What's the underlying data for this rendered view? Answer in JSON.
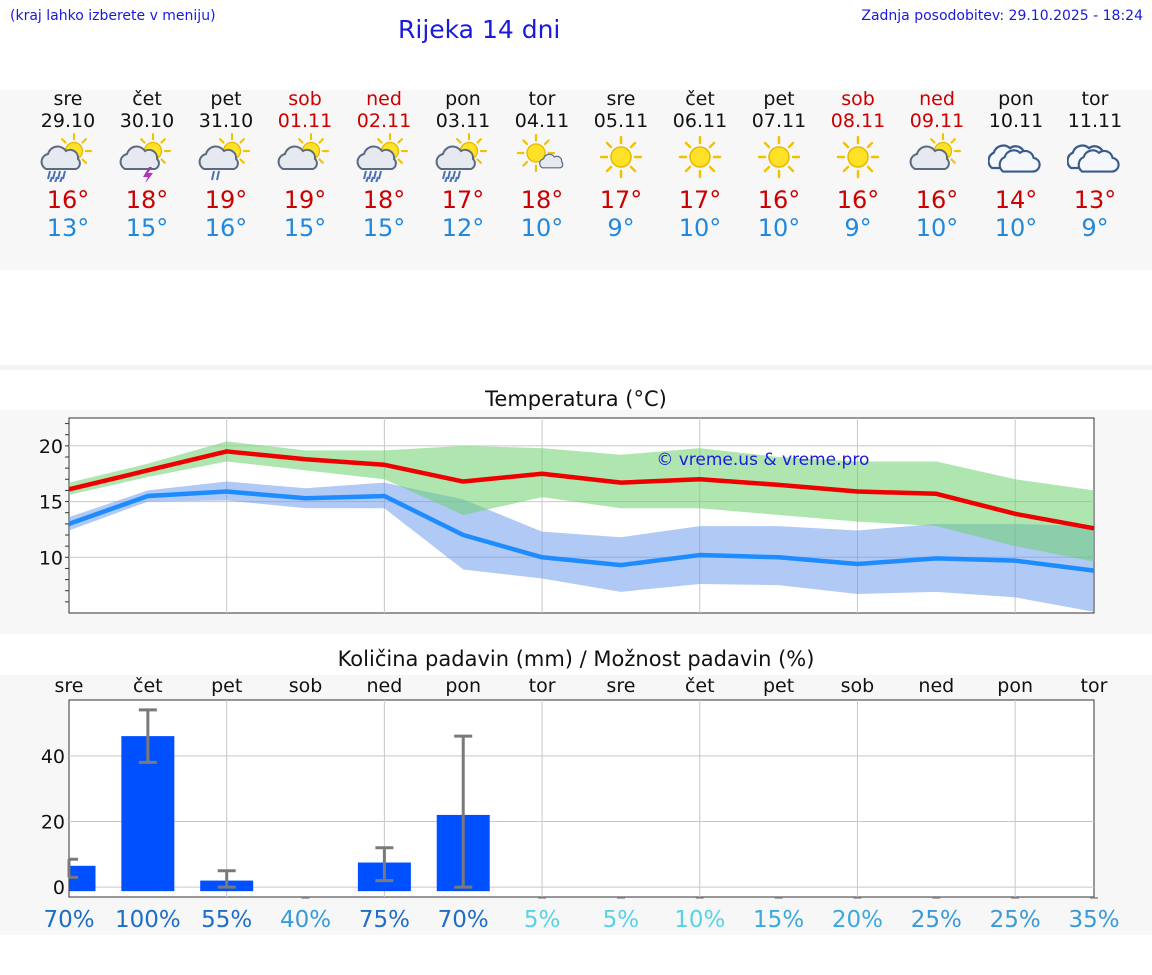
{
  "header": {
    "hint": "(kraj lahko izberete v meniju)",
    "title": "Rijeka 14 dni",
    "updated": "Zadnja posodobitev: 29.10.2025 - 18:24"
  },
  "days": [
    {
      "name": "sre",
      "date": "29.10",
      "weekend": false,
      "icon": "sun-cloud-rain-icon",
      "max": "16°",
      "min": "13°"
    },
    {
      "name": "čet",
      "date": "30.10",
      "weekend": false,
      "icon": "sun-cloud-thunder-icon",
      "max": "18°",
      "min": "15°"
    },
    {
      "name": "pet",
      "date": "31.10",
      "weekend": false,
      "icon": "sun-cloud-light-rain-icon",
      "max": "19°",
      "min": "16°"
    },
    {
      "name": "sob",
      "date": "01.11",
      "weekend": true,
      "icon": "sun-behind-cloud-icon",
      "max": "19°",
      "min": "15°"
    },
    {
      "name": "ned",
      "date": "02.11",
      "weekend": true,
      "icon": "sun-cloud-rain-icon",
      "max": "18°",
      "min": "15°"
    },
    {
      "name": "pon",
      "date": "03.11",
      "weekend": false,
      "icon": "sun-cloud-rain-icon",
      "max": "17°",
      "min": "12°"
    },
    {
      "name": "tor",
      "date": "04.11",
      "weekend": false,
      "icon": "sun-small-cloud-icon",
      "max": "18°",
      "min": "10°"
    },
    {
      "name": "sre",
      "date": "05.11",
      "weekend": false,
      "icon": "sun-icon",
      "max": "17°",
      "min": "9°"
    },
    {
      "name": "čet",
      "date": "06.11",
      "weekend": false,
      "icon": "sun-icon",
      "max": "17°",
      "min": "10°"
    },
    {
      "name": "pet",
      "date": "07.11",
      "weekend": false,
      "icon": "sun-icon",
      "max": "16°",
      "min": "10°"
    },
    {
      "name": "sob",
      "date": "08.11",
      "weekend": true,
      "icon": "sun-icon",
      "max": "16°",
      "min": "9°"
    },
    {
      "name": "ned",
      "date": "09.11",
      "weekend": true,
      "icon": "sun-behind-cloud-icon",
      "max": "16°",
      "min": "10°"
    },
    {
      "name": "pon",
      "date": "10.11",
      "weekend": false,
      "icon": "cloud-icon",
      "max": "14°",
      "min": "10°"
    },
    {
      "name": "tor",
      "date": "11.11",
      "weekend": false,
      "icon": "cloud-icon",
      "max": "13°",
      "min": "9°"
    }
  ],
  "chart_data": [
    {
      "type": "line",
      "title": "Temperatura (°C)",
      "watermark": "© vreme.us & vreme.pro",
      "ylim": [
        5,
        22.5
      ],
      "yticks": [
        10,
        15,
        20
      ],
      "x": [
        0,
        1,
        2,
        3,
        4,
        5,
        6,
        7,
        8,
        9,
        10,
        11,
        12,
        13
      ],
      "series": [
        {
          "name": "max",
          "color": "#ee0000",
          "values": [
            16.1,
            17.8,
            19.5,
            18.8,
            18.3,
            16.8,
            17.5,
            16.7,
            17.0,
            16.5,
            15.9,
            15.7,
            13.9,
            12.6
          ],
          "band_low": [
            15.6,
            17.2,
            18.6,
            17.8,
            17.0,
            13.8,
            15.4,
            14.4,
            14.4,
            13.8,
            13.2,
            12.8,
            11.0,
            9.6
          ],
          "band_high": [
            16.7,
            18.4,
            20.4,
            19.6,
            19.6,
            20.0,
            19.8,
            19.2,
            19.8,
            19.0,
            18.6,
            18.6,
            17.0,
            16.0
          ]
        },
        {
          "name": "min",
          "color": "#1e8cff",
          "values": [
            13.0,
            15.5,
            15.9,
            15.3,
            15.5,
            12.0,
            10.0,
            9.3,
            10.2,
            10.0,
            9.4,
            9.9,
            9.7,
            8.8
          ],
          "band_low": [
            12.4,
            15.0,
            15.1,
            14.4,
            14.4,
            8.9,
            8.1,
            6.9,
            7.6,
            7.5,
            6.7,
            6.9,
            6.4,
            5.1
          ],
          "band_high": [
            13.6,
            16.0,
            16.8,
            16.2,
            16.7,
            15.2,
            12.3,
            11.8,
            12.8,
            12.8,
            12.4,
            13.0,
            13.0,
            12.8
          ]
        }
      ]
    },
    {
      "type": "bar",
      "title": "Količina padavin (mm) / Možnost padavin (%)",
      "categories": [
        "sre",
        "čet",
        "pet",
        "sob",
        "ned",
        "pon",
        "tor",
        "sre",
        "čet",
        "pet",
        "sob",
        "ned",
        "pon",
        "tor"
      ],
      "ylim": [
        -3,
        57
      ],
      "yticks": [
        0,
        20,
        40
      ],
      "values": [
        6.5,
        46.0,
        2.0,
        0,
        7.5,
        22.0,
        0,
        0,
        0,
        0,
        0,
        0,
        0,
        0
      ],
      "err_low": [
        3.0,
        38.0,
        0,
        0,
        2.0,
        0,
        0,
        0,
        0,
        0,
        0,
        0,
        0,
        0
      ],
      "err_high": [
        8.5,
        54.0,
        5.0,
        0,
        12.0,
        46.0,
        0,
        0,
        0,
        0,
        0,
        0,
        0,
        0
      ],
      "bar_color": "#0050ff",
      "probability": [
        "70%",
        "100%",
        "55%",
        "40%",
        "75%",
        "70%",
        "5%",
        "5%",
        "10%",
        "15%",
        "20%",
        "25%",
        "25%",
        "35%"
      ],
      "probability_colors": [
        "#1e6ec8",
        "#1e6ec8",
        "#1e6ec8",
        "#3a9ad9",
        "#1e6ec8",
        "#1e6ec8",
        "#5ad2e6",
        "#5ad2e6",
        "#5ad2e6",
        "#3aaadd",
        "#3aaadd",
        "#3a9ad9",
        "#3a9ad9",
        "#3a9ad9"
      ]
    }
  ]
}
